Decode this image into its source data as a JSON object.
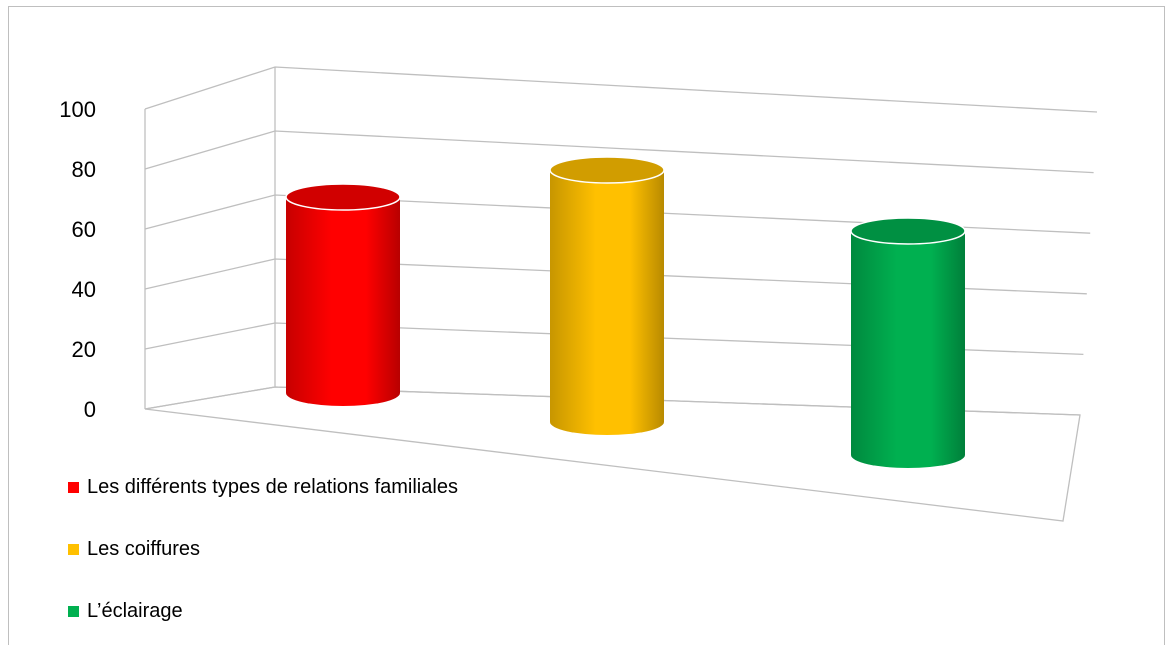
{
  "chart_data": {
    "type": "bar",
    "title": "",
    "xlabel": "",
    "ylabel": "",
    "ylim": [
      0,
      100
    ],
    "yticks": [
      "0",
      "20",
      "40",
      "60",
      "80",
      "100"
    ],
    "grid": true,
    "style": "3d-cylinder",
    "legend_position": "bottom-left",
    "categories": [
      "Les différents types de relations familiales",
      "Les coiffures",
      "L’éclairage"
    ],
    "values": [
      70,
      90,
      80
    ],
    "colors": [
      "#ff0000",
      "#ffc000",
      "#00b050"
    ]
  }
}
